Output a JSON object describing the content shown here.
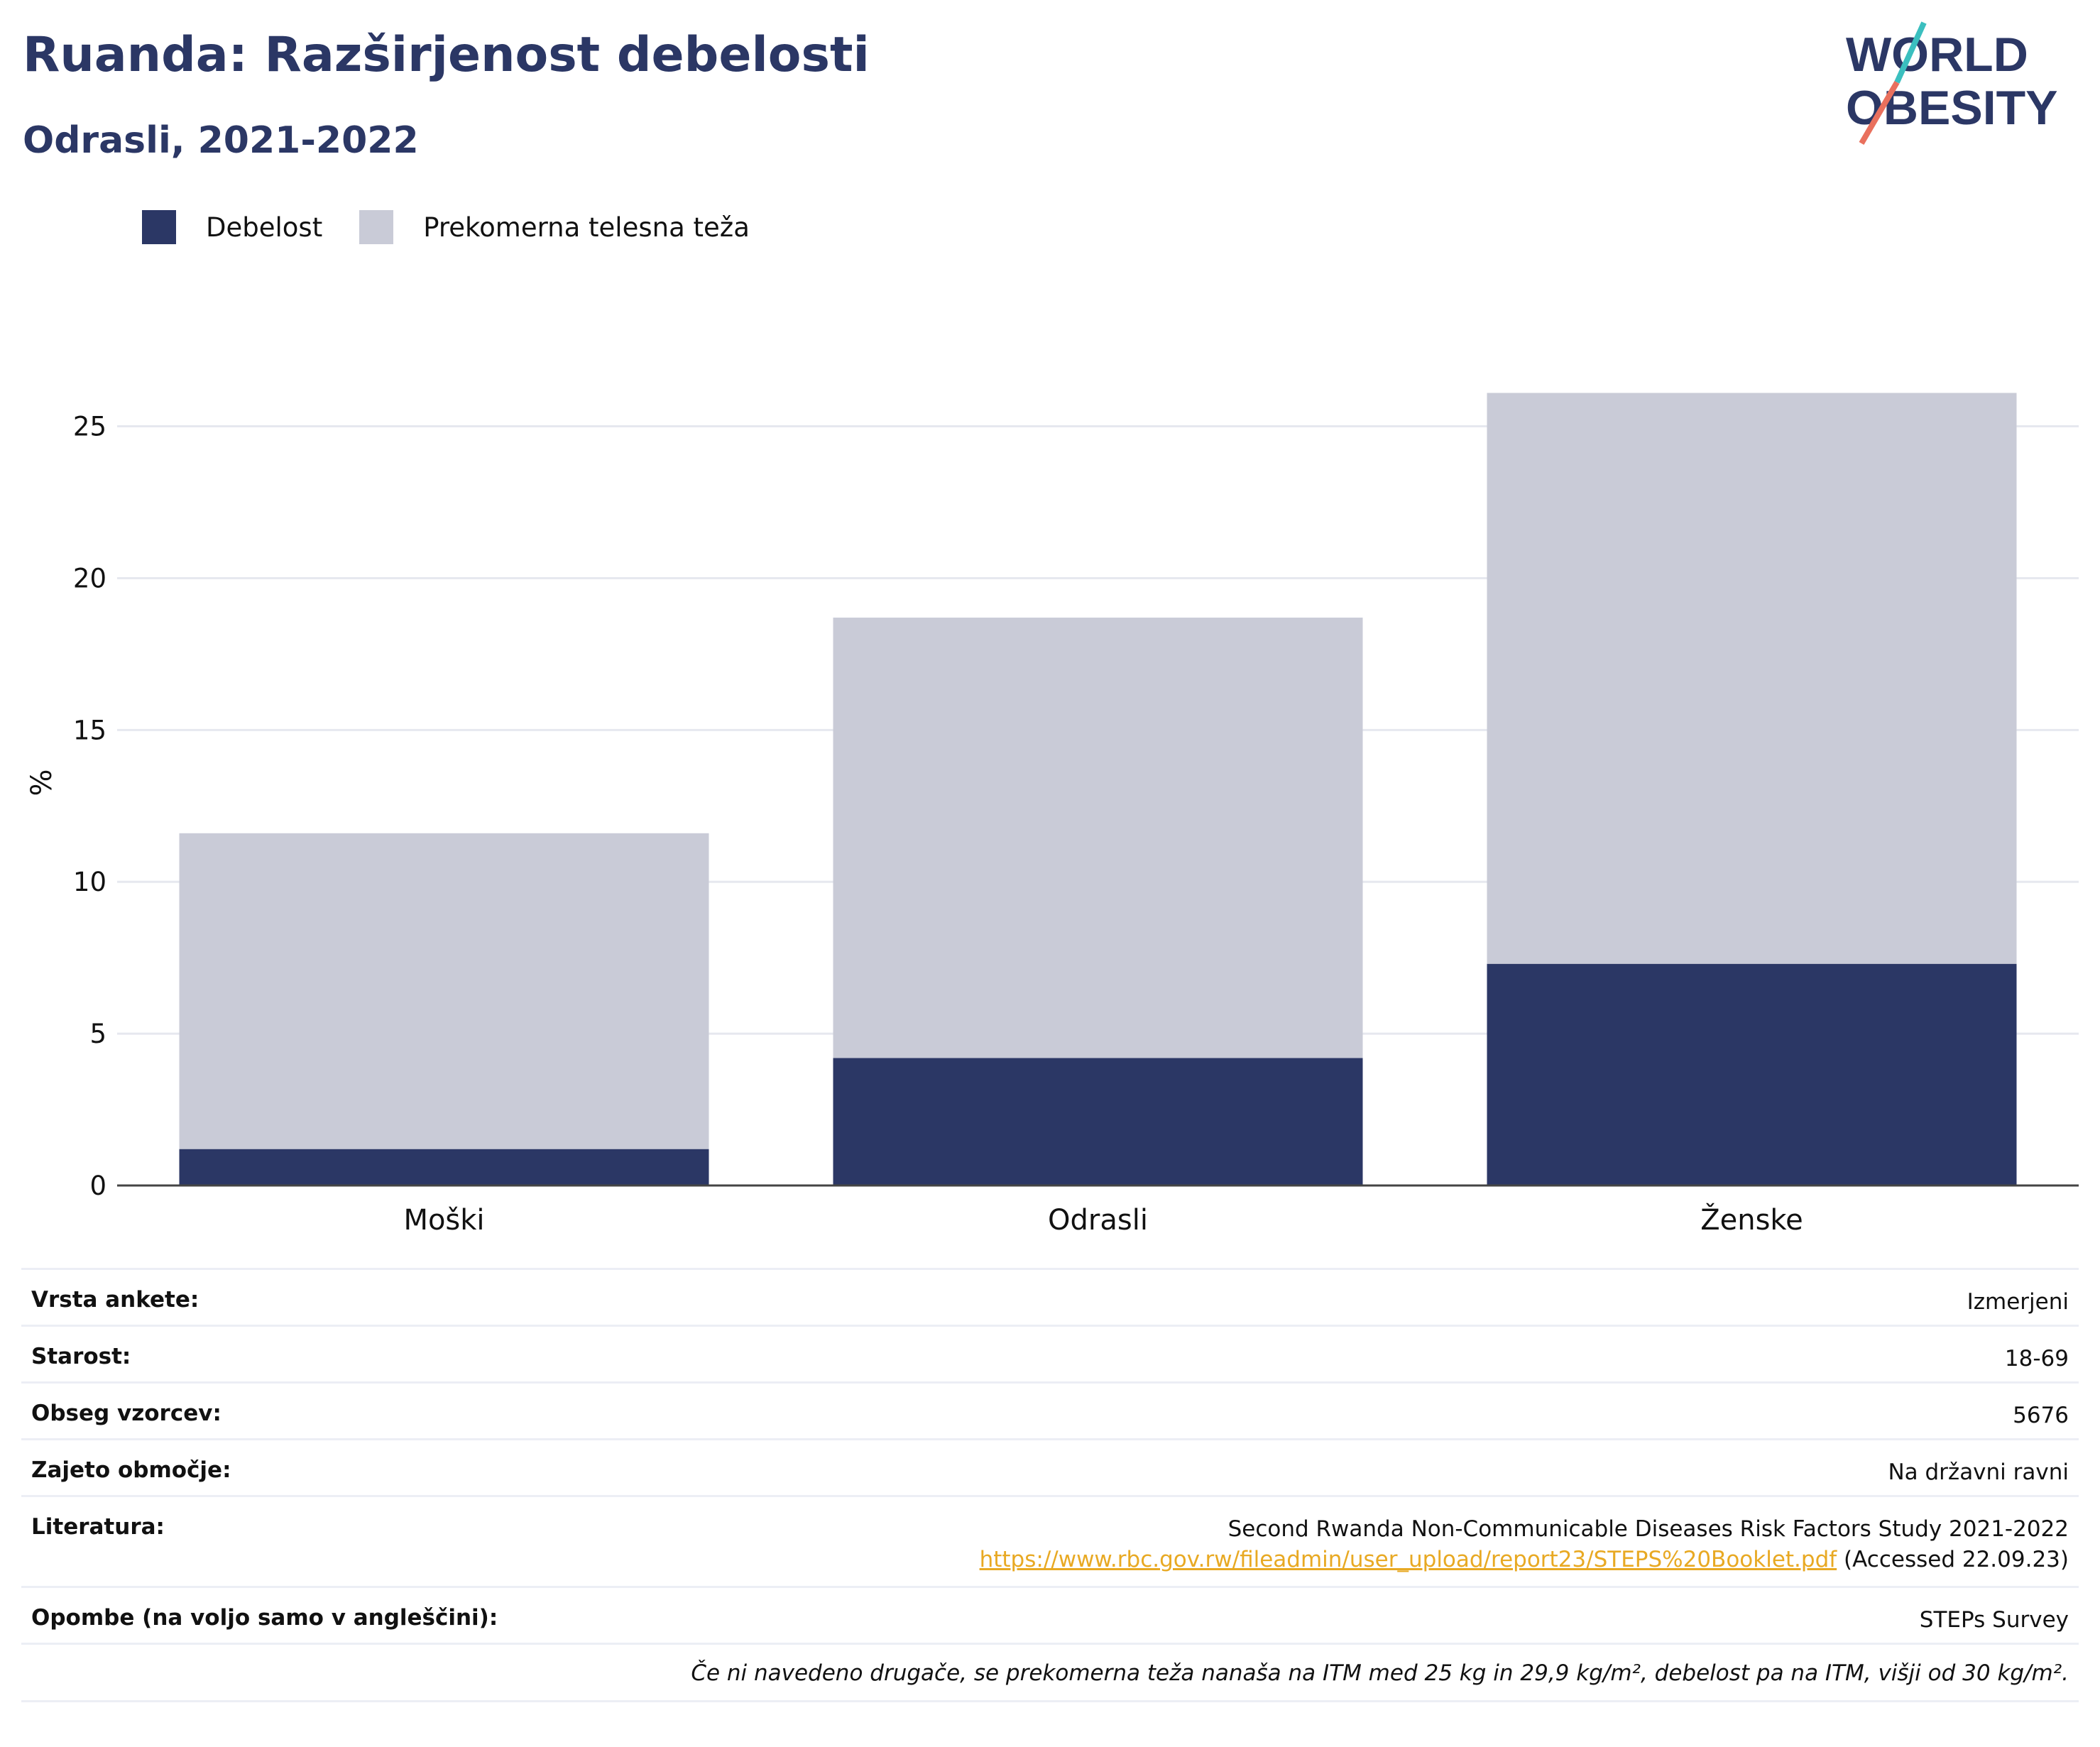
{
  "title": "Ruanda: Razširjenost debelosti",
  "subtitle": "Odrasli, 2021-2022",
  "logo": {
    "line1": "WORLD",
    "line2": "OBESITY",
    "accent_teal": "#3bbfbf",
    "accent_coral": "#e9705d"
  },
  "colors": {
    "obesity": "#2b3765",
    "overweight": "#c9cbd7",
    "text": "#2b3765"
  },
  "chart_data": {
    "type": "bar",
    "stacked": true,
    "categories": [
      "Moški",
      "Odrasli",
      "Ženske"
    ],
    "series": [
      {
        "name": "Debelost",
        "values": [
          1.2,
          4.2,
          7.3
        ],
        "color": "#2b3765"
      },
      {
        "name": "Prekomerna telesna teža",
        "values": [
          10.4,
          14.5,
          18.8
        ],
        "color": "#c9cbd7"
      }
    ],
    "ylabel": "%",
    "ylim": [
      0,
      27
    ],
    "yticks": [
      0,
      5,
      10,
      15,
      20,
      25
    ],
    "grid": true,
    "legend": "top-left"
  },
  "info": {
    "survey_type": {
      "label": "Vrsta ankete:",
      "value": "Izmerjeni"
    },
    "age": {
      "label": "Starost:",
      "value": "18-69"
    },
    "sample": {
      "label": "Obseg vzorcev:",
      "value": "5676"
    },
    "area": {
      "label": "Zajeto območje:",
      "value": "Na državni ravni"
    },
    "literature": {
      "label": "Literatura:",
      "value_line1": "Second Rwanda Non-Communicable Diseases Risk Factors Study 2021-2022",
      "link": "https://www.rbc.gov.rw/fileadmin/user_upload/report23/STEPS%20Booklet.pdf",
      "accessed": " (Accessed 22.09.23)"
    },
    "notes": {
      "label": "Opombe (na voljo samo v angleščini):",
      "value": "STEPs Survey"
    },
    "footnote": "Če ni navedeno drugače, se prekomerna teža nanaša na ITM med 25 kg in 29,9 kg/m², debelost pa na ITM, višji od 30 kg/m²."
  }
}
